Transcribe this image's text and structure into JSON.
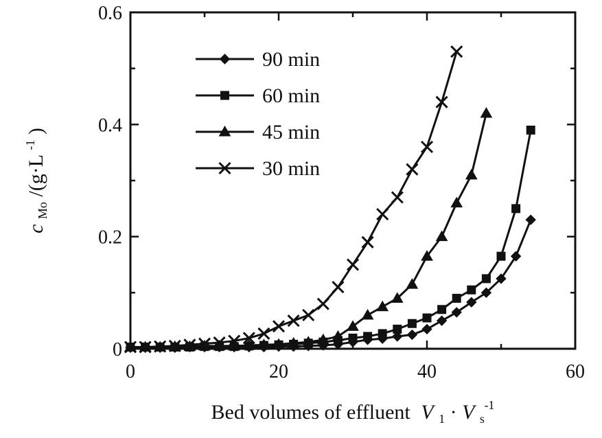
{
  "chart_data": {
    "type": "line",
    "title": "",
    "xlabel": "Bed volumes of effluent",
    "xlabel_math": {
      "v1": "V",
      "v1_sub": "1",
      "dot": "·",
      "v2": "V",
      "v2_sub": "s",
      "exp": "-1"
    },
    "ylabel_math": {
      "var": "c",
      "sub": "Mo",
      "unit": "/(g·L",
      "exp": "-1",
      "close": ")"
    },
    "xlim": [
      0,
      60
    ],
    "ylim": [
      0,
      0.6
    ],
    "xticks": [
      "0",
      "20",
      "40",
      "60"
    ],
    "yticks": [
      "0",
      "0.2",
      "0.4",
      "0.6"
    ],
    "grid": false,
    "legend_position": "top-left",
    "series": [
      {
        "name": "90 min",
        "marker": "diamond",
        "x": [
          0,
          2,
          4,
          6,
          8,
          10,
          12,
          14,
          16,
          18,
          20,
          22,
          24,
          26,
          28,
          30,
          32,
          34,
          36,
          38,
          40,
          42,
          44,
          46,
          48,
          50,
          52,
          54
        ],
        "y": [
          0.002,
          0.002,
          0.002,
          0.002,
          0.003,
          0.003,
          0.003,
          0.003,
          0.003,
          0.003,
          0.004,
          0.004,
          0.005,
          0.006,
          0.008,
          0.012,
          0.016,
          0.018,
          0.022,
          0.025,
          0.035,
          0.05,
          0.065,
          0.083,
          0.1,
          0.125,
          0.165,
          0.23
        ]
      },
      {
        "name": "60 min",
        "marker": "square",
        "x": [
          0,
          2,
          4,
          6,
          8,
          10,
          12,
          14,
          16,
          18,
          20,
          22,
          24,
          26,
          28,
          30,
          32,
          34,
          36,
          38,
          40,
          42,
          44,
          46,
          48,
          50,
          52,
          54
        ],
        "y": [
          0.003,
          0.003,
          0.003,
          0.003,
          0.003,
          0.004,
          0.004,
          0.004,
          0.005,
          0.006,
          0.007,
          0.008,
          0.01,
          0.012,
          0.015,
          0.019,
          0.022,
          0.027,
          0.035,
          0.045,
          0.055,
          0.07,
          0.09,
          0.105,
          0.125,
          0.165,
          0.25,
          0.39
        ]
      },
      {
        "name": "45 min",
        "marker": "triangle",
        "x": [
          0,
          2,
          4,
          6,
          8,
          10,
          12,
          14,
          16,
          18,
          20,
          22,
          24,
          26,
          28,
          30,
          32,
          34,
          36,
          38,
          40,
          42,
          44,
          46,
          48
        ],
        "y": [
          0.003,
          0.003,
          0.003,
          0.004,
          0.004,
          0.005,
          0.005,
          0.005,
          0.006,
          0.007,
          0.008,
          0.01,
          0.012,
          0.016,
          0.022,
          0.04,
          0.06,
          0.075,
          0.09,
          0.115,
          0.165,
          0.2,
          0.26,
          0.31,
          0.42
        ]
      },
      {
        "name": "30 min",
        "marker": "x",
        "x": [
          0,
          2,
          4,
          6,
          8,
          10,
          12,
          14,
          16,
          18,
          20,
          22,
          24,
          26,
          28,
          30,
          32,
          34,
          36,
          38,
          40,
          42,
          44
        ],
        "y": [
          0.003,
          0.003,
          0.004,
          0.005,
          0.007,
          0.009,
          0.011,
          0.014,
          0.019,
          0.027,
          0.04,
          0.05,
          0.06,
          0.08,
          0.11,
          0.15,
          0.19,
          0.24,
          0.27,
          0.32,
          0.36,
          0.44,
          0.53
        ]
      }
    ]
  }
}
